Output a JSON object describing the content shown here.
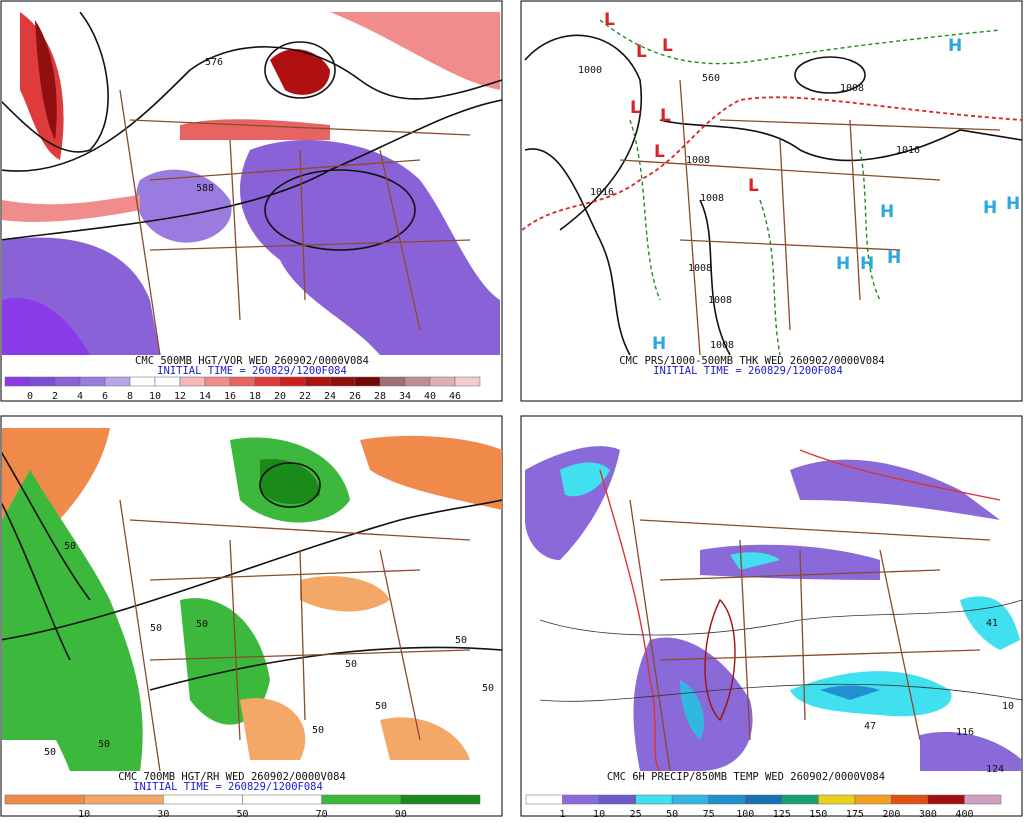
{
  "panels": [
    {
      "caption": "CMC 500MB HGT/VOR WED 260902/0000V084",
      "initial_time": "INITIAL TIME = 260829/1200F084",
      "colorbar": {
        "labels": [
          "0",
          "2",
          "4",
          "6",
          "8",
          "10",
          "12",
          "14",
          "16",
          "18",
          "20",
          "22",
          "24",
          "26",
          "28",
          "34",
          "40",
          "46"
        ],
        "colors": [
          "#8a3ae6",
          "#7b4fd8",
          "#8a62d8",
          "#9a7be0",
          "#b7a6ec",
          "#ffffff",
          "#ffffff",
          "#f5b7b7",
          "#f08c8c",
          "#e86464",
          "#de3c3c",
          "#cc2020",
          "#b01010",
          "#901010",
          "#700808",
          "#a07070",
          "#c09090",
          "#e0b0b0",
          "#f5cccc"
        ]
      },
      "map_labels": [
        "576",
        "588"
      ]
    },
    {
      "caption": "CMC PRS/1000-500MB THK WED 260902/0000V084",
      "initial_time": "INITIAL TIME = 260829/1200F084",
      "map_labels": [
        "1000",
        "1008",
        "1016",
        "1008",
        "1008",
        "1016",
        "1008",
        "1008",
        "1008",
        "560"
      ],
      "highs": [
        "H",
        "H",
        "H",
        "H",
        "H",
        "H",
        "H",
        "H"
      ],
      "lows": [
        "L",
        "L",
        "L",
        "L",
        "L",
        "L",
        "L"
      ]
    },
    {
      "caption": "CMC 700MB HGT/RH WED 260902/0000V084",
      "initial_time": "INITIAL TIME = 260829/1200F084",
      "colorbar": {
        "labels": [
          "10",
          "30",
          "50",
          "70",
          "90"
        ],
        "colors": [
          "#ef8a4a",
          "#f4a868",
          "#ffffff",
          "#ffffff",
          "#3cb83c",
          "#1a8a1a"
        ]
      },
      "map_labels": [
        "50",
        "50",
        "50",
        "50",
        "50",
        "50",
        "50",
        "50",
        "50",
        "50"
      ]
    },
    {
      "caption": "CMC 6H PRECIP/850MB TEMP WED 260902/0000V084",
      "colorbar": {
        "labels": [
          "1",
          "10",
          "25",
          "50",
          "75",
          "100",
          "125",
          "150",
          "175",
          "200",
          "300",
          "400"
        ],
        "colors": [
          "#ffffff",
          "#8a6ad8",
          "#6a5acd",
          "#40e0f0",
          "#30b8e0",
          "#2090d0",
          "#1a70b0",
          "#1aa070",
          "#e8d020",
          "#f0a020",
          "#e05010",
          "#a01010",
          "#d0a0c0"
        ]
      },
      "map_labels": [
        "41",
        "47",
        "116",
        "124",
        "10"
      ]
    }
  ]
}
